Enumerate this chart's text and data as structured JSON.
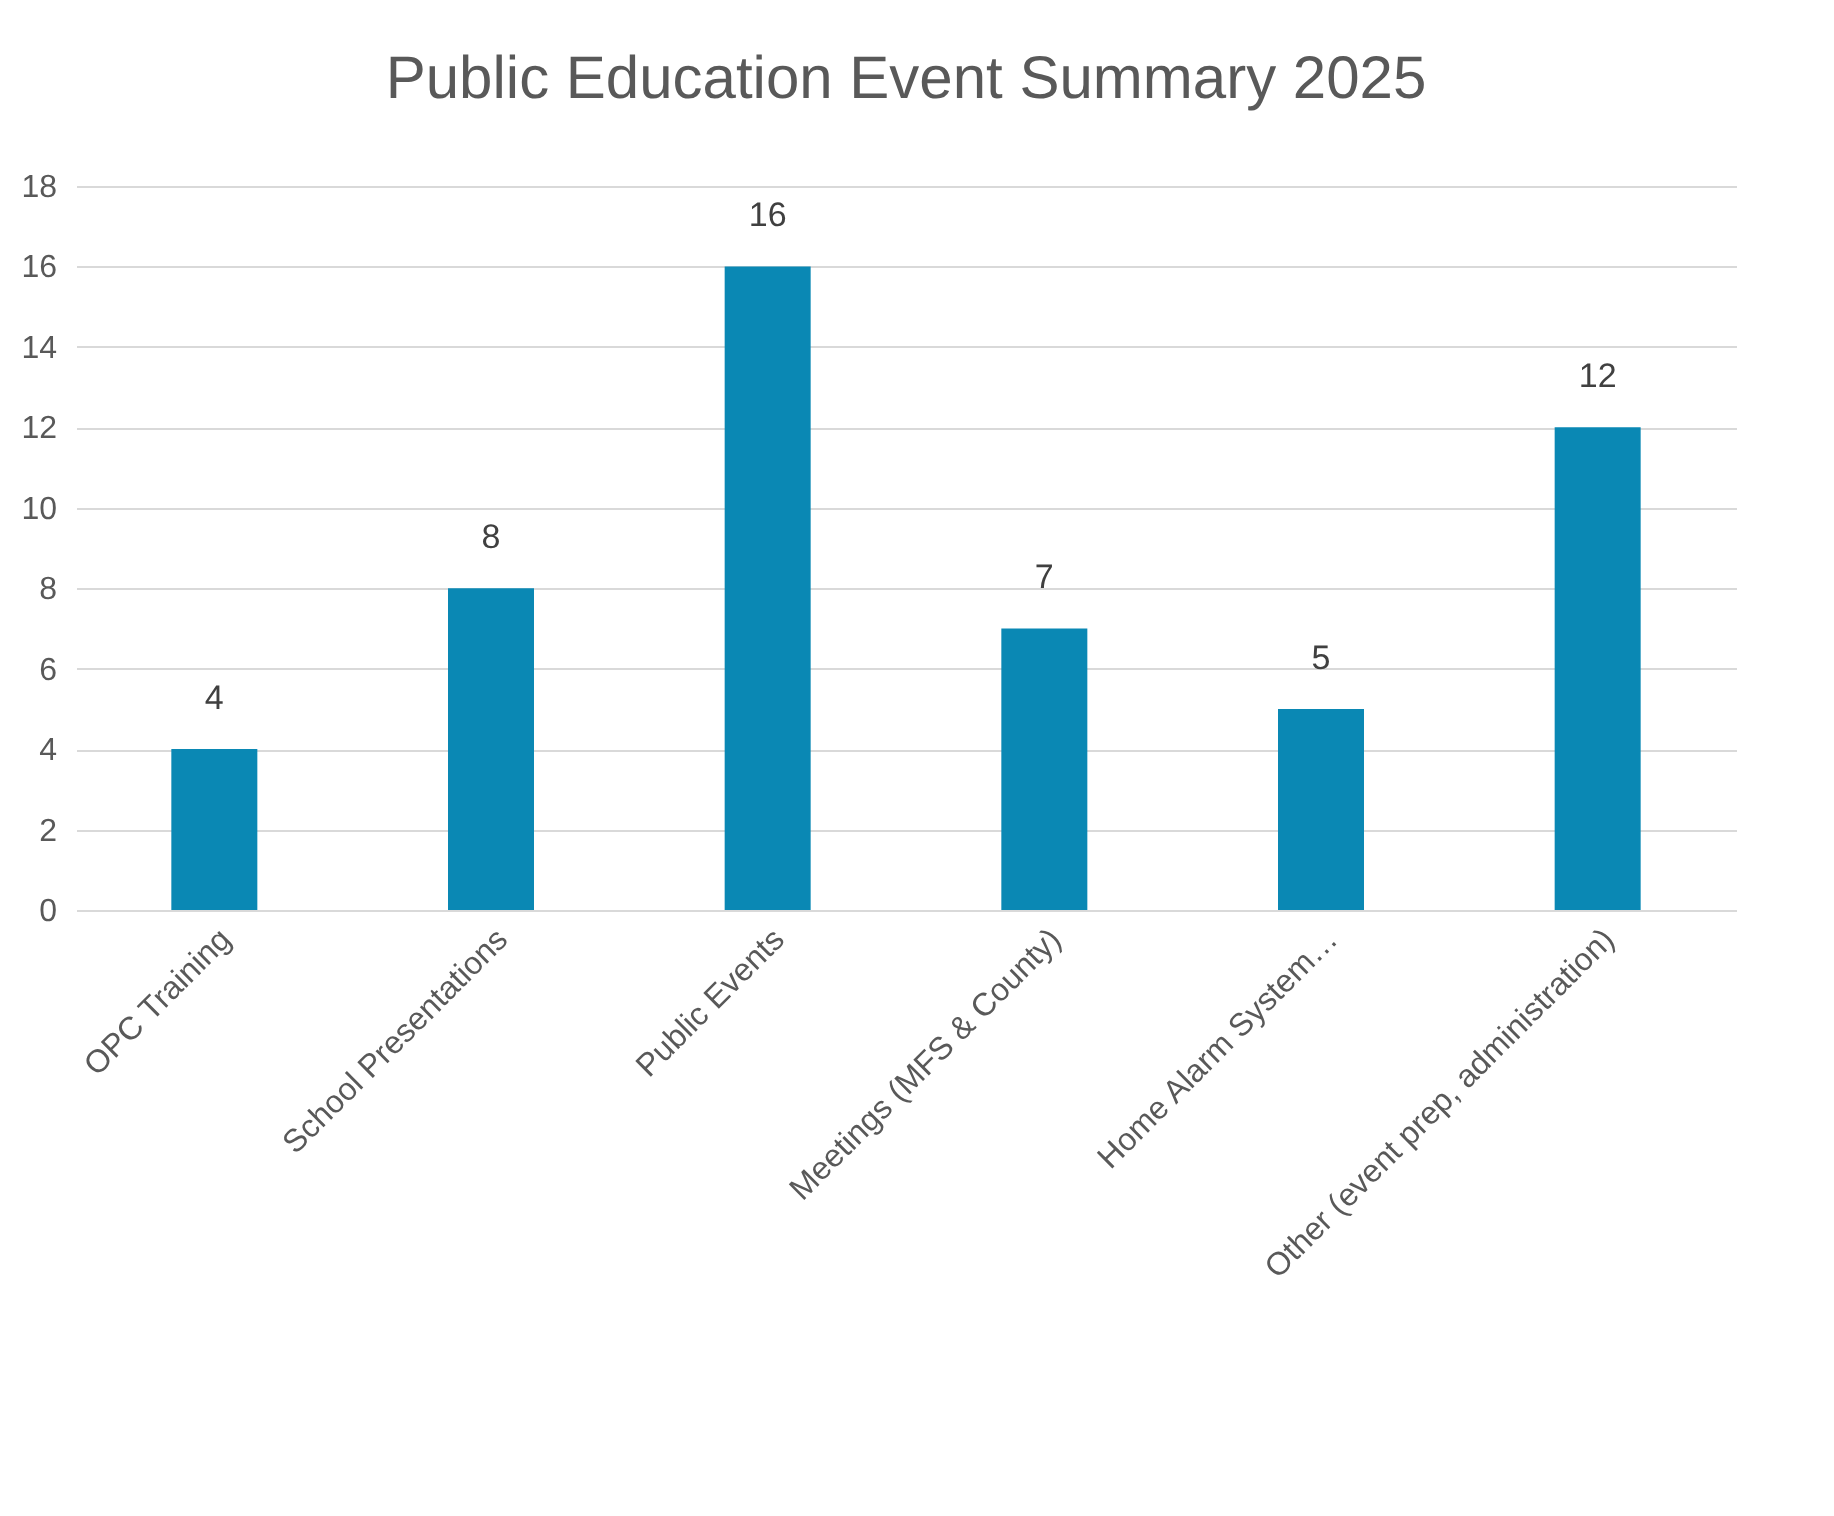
{
  "chart_data": {
    "type": "bar",
    "title": "Public Education Event Summary 2025",
    "categories": [
      "OPC Training",
      "School Presentations",
      "Public Events",
      "Meetings (MFS & County)",
      "Home Alarm System…",
      "Other (event prep, administration)"
    ],
    "values": [
      4,
      8,
      16,
      7,
      5,
      12
    ],
    "color": "#0a88b4",
    "ylim": [
      0,
      18
    ],
    "yticks": [
      0,
      2,
      4,
      6,
      8,
      10,
      12,
      14,
      16,
      18
    ],
    "grid": "y",
    "data_labels": true
  }
}
